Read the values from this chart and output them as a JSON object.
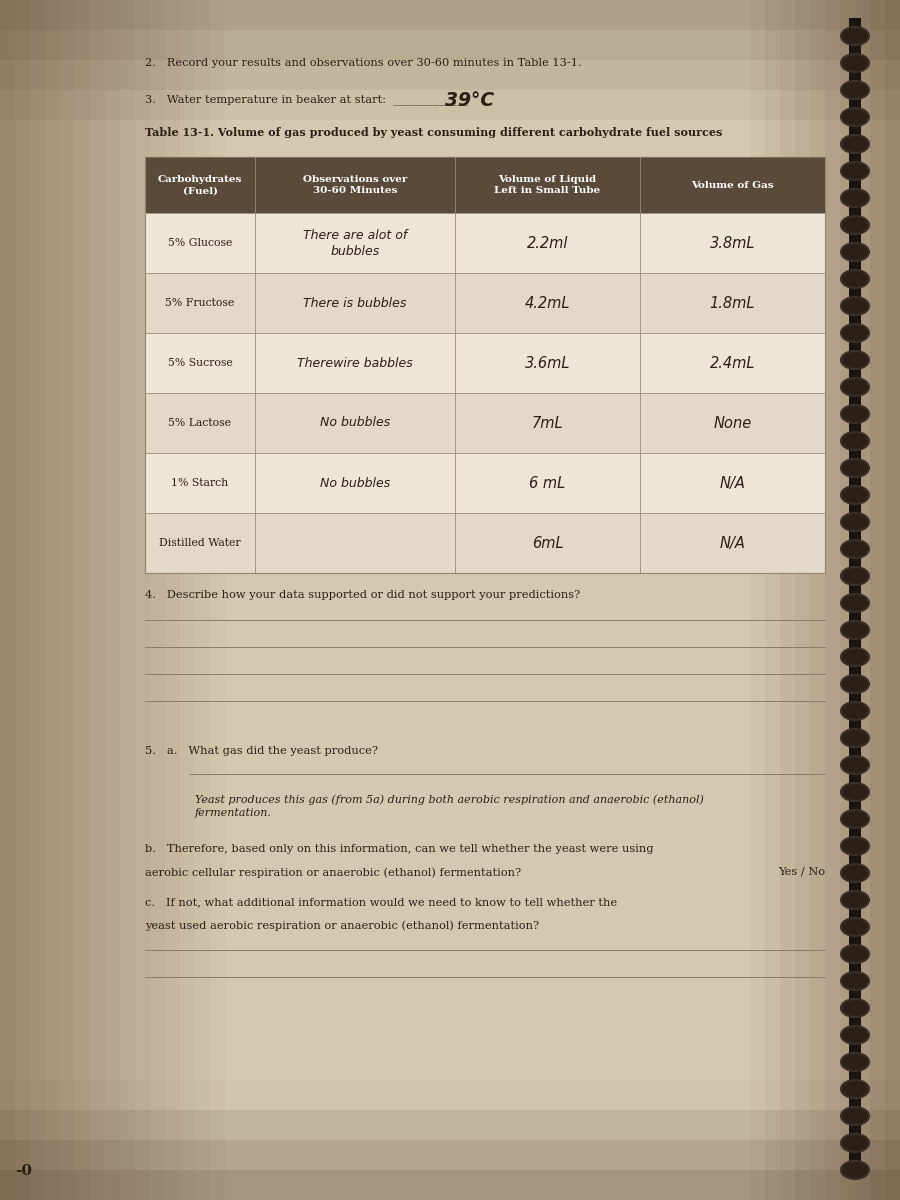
{
  "page_bg_center": "#d4c9b0",
  "page_bg_edge": "#a89070",
  "table_header_bg": "#5a4a3a",
  "table_row_bg1": "#ede5d5",
  "table_row_bg2": "#e2d9c8",
  "col_headers": [
    "Carbohydrates\n(Fuel)",
    "Observations over\n30-60 Minutes",
    "Volume of Liquid\nLeft in Small Tube",
    "Volume of Gas"
  ],
  "rows": [
    [
      "5% Glucose",
      "There are alot of\nbubbles",
      "2.2ml",
      "3.8mL"
    ],
    [
      "5% Fructose",
      "There is bubbles",
      "4.2mL",
      "1.8mL"
    ],
    [
      "5% Sucrose",
      "Therewire babbles",
      "3.6mL",
      "2.4mL"
    ],
    [
      "5% Lactose",
      "No bubbles",
      "7mL",
      "None"
    ],
    [
      "1% Starch",
      "No bubbles",
      "6 mL",
      "N/A"
    ],
    [
      "Distilled Water",
      "",
      "6mL",
      "N/A"
    ]
  ],
  "header_2": "2.   Record your results and observations over 30-60 minutes in Table 13-1.",
  "header_3": "3.   Water temperature in beaker at start:",
  "water_temp": "39°C",
  "table_title": "Table 13-1. Volume of gas produced by yeast consuming different carbohydrate fuel sources",
  "q4": "4.   Describe how your data supported or did not support your predictions?",
  "q5a": "5.   a.   What gas did the yeast produce?",
  "q5_italic": "Yeast produces this gas (from 5a) during both aerobic respiration and anaerobic (ethanol)\nfermentation.",
  "q5b_1": "b.   Therefore, based only on this information, can we tell whether the yeast were using",
  "q5b_2": "aerobic cellular respiration or anaerobic (ethanol) fermentation?",
  "q5b_suffix": "Yes / No",
  "q5c_1": "c.   If not, what additional information would we need to know to tell whether the",
  "q5c_2": "yeast used aerobic respiration or anaerobic (ethanol) fermentation?",
  "page_number": "-0",
  "text_color": "#2a1f15",
  "line_color": "#8a7a6a",
  "spiral_color": "#3a3028"
}
